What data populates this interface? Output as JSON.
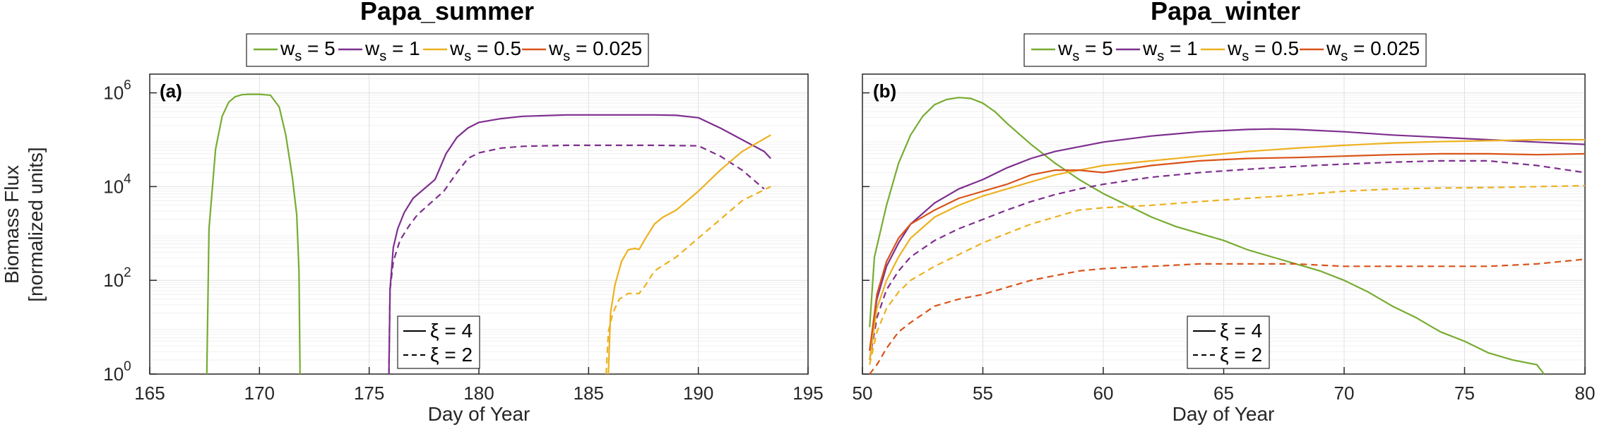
{
  "chart_data": [
    {
      "type": "line",
      "panel_label": "(a)",
      "title": "Papa_summer",
      "xlabel": "Day of Year",
      "ylabel_line1": "Biomass Flux",
      "ylabel_line2": "[normalized units]",
      "xlim": [
        165,
        195
      ],
      "ylim_log10": [
        0,
        6.4
      ],
      "yscale": "log",
      "grid": true,
      "xticks": [
        "165",
        "170",
        "175",
        "180",
        "185",
        "190",
        "195"
      ],
      "legend": [
        {
          "name_base": "w",
          "name_sub": "s",
          "name_tail": " = 5",
          "color": "#77AC30"
        },
        {
          "name_base": "w",
          "name_sub": "s",
          "name_tail": " = 1",
          "color": "#7E2F8E"
        },
        {
          "name_base": "w",
          "name_sub": "s",
          "name_tail": " = 0.5",
          "color": "#EDB120"
        },
        {
          "name_base": "w",
          "name_sub": "s",
          "name_tail": " = 0.025",
          "color": "#D95319"
        }
      ],
      "style_legend": [
        {
          "label": "ξ = 4",
          "style": "solid"
        },
        {
          "label": "ξ = 2",
          "style": "dashed"
        }
      ],
      "series": [
        {
          "color": "#77AC30",
          "style": "solid",
          "x": [
            167.6,
            167.7,
            168.0,
            168.3,
            168.6,
            168.9,
            169.2,
            169.5,
            170.0,
            170.5,
            170.9,
            171.2,
            171.5,
            171.7,
            171.8,
            171.85
          ],
          "y_log10": [
            0,
            3.1,
            4.8,
            5.5,
            5.8,
            5.92,
            5.96,
            5.97,
            5.97,
            5.95,
            5.7,
            5.1,
            4.2,
            3.4,
            2.2,
            0
          ]
        },
        {
          "color": "#7E2F8E",
          "style": "solid",
          "x": [
            175.9,
            175.95,
            176.1,
            176.3,
            176.6,
            177.0,
            177.5,
            178.0,
            178.5,
            179.0,
            179.5,
            180.0,
            181.0,
            182.0,
            184.0,
            186.0,
            188.0,
            189.0,
            190.0,
            191.0,
            192.0,
            193.0,
            193.3
          ],
          "y_log10": [
            0,
            1.8,
            2.7,
            3.1,
            3.45,
            3.75,
            3.95,
            4.15,
            4.7,
            5.05,
            5.25,
            5.37,
            5.45,
            5.5,
            5.53,
            5.53,
            5.53,
            5.52,
            5.47,
            5.25,
            5.0,
            4.75,
            4.6
          ]
        },
        {
          "color": "#7E2F8E",
          "style": "dashed",
          "x": [
            175.9,
            175.95,
            176.1,
            176.4,
            176.8,
            177.2,
            177.8,
            178.4,
            179.0,
            179.5,
            180.0,
            181.0,
            182.0,
            184.0,
            186.0,
            188.0,
            190.0,
            191.0,
            192.0,
            193.0
          ],
          "y_log10": [
            0,
            1.8,
            2.4,
            2.85,
            3.15,
            3.4,
            3.65,
            3.9,
            4.3,
            4.6,
            4.72,
            4.82,
            4.86,
            4.88,
            4.88,
            4.88,
            4.87,
            4.65,
            4.35,
            3.95
          ]
        },
        {
          "color": "#EDB120",
          "style": "solid",
          "x": [
            185.9,
            186.0,
            186.2,
            186.5,
            186.8,
            187.1,
            187.3,
            187.6,
            188.0,
            188.4,
            189.0,
            190.0,
            191.0,
            192.0,
            193.3
          ],
          "y_log10": [
            0,
            1.3,
            1.9,
            2.4,
            2.65,
            2.68,
            2.66,
            2.9,
            3.2,
            3.35,
            3.5,
            3.9,
            4.35,
            4.75,
            5.1
          ]
        },
        {
          "color": "#EDB120",
          "style": "dashed",
          "x": [
            185.8,
            185.9,
            186.1,
            186.4,
            186.8,
            187.1,
            187.3,
            187.6,
            188.0,
            188.5,
            189.0,
            190.0,
            191.0,
            192.0,
            193.3
          ],
          "y_log10": [
            0,
            0.9,
            1.3,
            1.6,
            1.72,
            1.72,
            1.72,
            1.9,
            2.2,
            2.35,
            2.5,
            2.9,
            3.3,
            3.7,
            4.0
          ]
        }
      ]
    },
    {
      "type": "line",
      "panel_label": "(b)",
      "title": "Papa_winter",
      "xlabel": "Day of Year",
      "xlim": [
        50,
        80
      ],
      "ylim_log10": [
        0,
        6.4
      ],
      "yscale": "log",
      "grid": true,
      "xticks": [
        "50",
        "55",
        "60",
        "65",
        "70",
        "75",
        "80"
      ],
      "legend": [
        {
          "name_base": "w",
          "name_sub": "s",
          "name_tail": " = 5",
          "color": "#77AC30"
        },
        {
          "name_base": "w",
          "name_sub": "s",
          "name_tail": " = 1",
          "color": "#7E2F8E"
        },
        {
          "name_base": "w",
          "name_sub": "s",
          "name_tail": " = 0.5",
          "color": "#EDB120"
        },
        {
          "name_base": "w",
          "name_sub": "s",
          "name_tail": " = 0.025",
          "color": "#D95319"
        }
      ],
      "style_legend": [
        {
          "label": "ξ = 4",
          "style": "solid"
        },
        {
          "label": "ξ = 2",
          "style": "dashed"
        }
      ],
      "series": [
        {
          "color": "#77AC30",
          "style": "solid",
          "x": [
            50.3,
            50.5,
            51.0,
            51.5,
            52.0,
            52.5,
            53.0,
            53.5,
            54.0,
            54.5,
            55.0,
            55.5,
            56.0,
            57.0,
            58.0,
            59.0,
            60.0,
            61.0,
            62.0,
            63.0,
            64.0,
            65.0,
            66.0,
            67.0,
            68.0,
            69.0,
            70.0,
            71.0,
            72.0,
            73.0,
            74.0,
            75.0,
            76.0,
            77.0,
            78.0,
            78.3
          ],
          "y_log10": [
            1.0,
            2.5,
            3.6,
            4.5,
            5.1,
            5.5,
            5.75,
            5.86,
            5.9,
            5.88,
            5.78,
            5.6,
            5.35,
            4.9,
            4.5,
            4.15,
            3.85,
            3.6,
            3.35,
            3.15,
            3.0,
            2.85,
            2.65,
            2.5,
            2.35,
            2.2,
            2.0,
            1.75,
            1.45,
            1.2,
            0.9,
            0.7,
            0.45,
            0.3,
            0.2,
            0.0
          ]
        },
        {
          "color": "#7E2F8E",
          "style": "solid",
          "x": [
            50.3,
            50.6,
            51.0,
            51.5,
            52.0,
            53.0,
            54.0,
            55.0,
            56.0,
            57.0,
            58.0,
            59.0,
            60.0,
            62.0,
            64.0,
            66.0,
            67.0,
            68.0,
            70.0,
            72.0,
            74.0,
            76.0,
            78.0,
            80.0
          ],
          "y_log10": [
            0.5,
            1.6,
            2.3,
            2.8,
            3.2,
            3.65,
            3.95,
            4.15,
            4.4,
            4.6,
            4.75,
            4.85,
            4.95,
            5.08,
            5.17,
            5.22,
            5.23,
            5.22,
            5.17,
            5.1,
            5.05,
            5.0,
            4.95,
            4.9
          ]
        },
        {
          "color": "#7E2F8E",
          "style": "dashed",
          "x": [
            50.3,
            50.6,
            51.0,
            51.5,
            52.0,
            53.0,
            54.0,
            55.0,
            56.0,
            57.0,
            58.0,
            59.0,
            60.0,
            62.0,
            64.0,
            66.0,
            68.0,
            70.0,
            72.0,
            74.0,
            76.0,
            78.0,
            80.0
          ],
          "y_log10": [
            0.3,
            1.2,
            1.8,
            2.2,
            2.5,
            2.85,
            3.1,
            3.3,
            3.5,
            3.68,
            3.83,
            3.95,
            4.05,
            4.2,
            4.3,
            4.37,
            4.43,
            4.48,
            4.52,
            4.55,
            4.55,
            4.45,
            4.3
          ]
        },
        {
          "color": "#EDB120",
          "style": "solid",
          "x": [
            50.3,
            50.6,
            51.0,
            51.5,
            52.0,
            53.0,
            54.0,
            55.0,
            56.0,
            57.0,
            58.0,
            59.0,
            60.0,
            62.0,
            64.0,
            66.0,
            68.0,
            70.0,
            72.0,
            74.0,
            76.0,
            78.0,
            80.0
          ],
          "y_log10": [
            0.3,
            1.4,
            2.0,
            2.5,
            2.9,
            3.35,
            3.6,
            3.8,
            3.95,
            4.1,
            4.25,
            4.35,
            4.45,
            4.55,
            4.65,
            4.75,
            4.82,
            4.88,
            4.93,
            4.96,
            4.98,
            5.0,
            5.0
          ]
        },
        {
          "color": "#EDB120",
          "style": "dashed",
          "x": [
            50.3,
            50.6,
            51.0,
            51.5,
            52.0,
            53.0,
            54.0,
            55.0,
            56.0,
            57.0,
            58.0,
            59.0,
            60.0,
            62.0,
            64.0,
            66.0,
            68.0,
            70.0,
            72.0,
            74.0,
            76.0,
            78.0,
            80.0
          ],
          "y_log10": [
            0.2,
            0.9,
            1.4,
            1.75,
            2.0,
            2.3,
            2.55,
            2.8,
            3.0,
            3.2,
            3.35,
            3.5,
            3.55,
            3.6,
            3.68,
            3.75,
            3.82,
            3.9,
            3.95,
            3.97,
            3.98,
            4.0,
            4.02
          ]
        },
        {
          "color": "#D95319",
          "style": "solid",
          "x": [
            50.3,
            50.6,
            51.0,
            51.5,
            52.0,
            53.0,
            54.0,
            55.0,
            56.0,
            57.0,
            58.0,
            59.0,
            60.0,
            62.0,
            64.0,
            66.0,
            68.0,
            70.0,
            72.0,
            74.0,
            76.0,
            78.0,
            80.0
          ],
          "y_log10": [
            0.5,
            1.7,
            2.4,
            2.9,
            3.2,
            3.5,
            3.75,
            3.9,
            4.05,
            4.25,
            4.35,
            4.35,
            4.3,
            4.45,
            4.55,
            4.6,
            4.62,
            4.65,
            4.68,
            4.7,
            4.7,
            4.68,
            4.7
          ]
        },
        {
          "color": "#D95319",
          "style": "dashed",
          "x": [
            50.3,
            50.6,
            51.0,
            51.5,
            52.0,
            53.0,
            54.0,
            55.0,
            56.0,
            57.0,
            58.0,
            59.0,
            60.0,
            62.0,
            64.0,
            66.0,
            68.0,
            70.0,
            72.0,
            74.0,
            76.0,
            78.0,
            80.0
          ],
          "y_log10": [
            0.0,
            0.2,
            0.55,
            0.9,
            1.1,
            1.45,
            1.6,
            1.7,
            1.85,
            2.0,
            2.1,
            2.2,
            2.25,
            2.3,
            2.35,
            2.35,
            2.35,
            2.3,
            2.3,
            2.3,
            2.3,
            2.35,
            2.45
          ]
        }
      ]
    }
  ]
}
